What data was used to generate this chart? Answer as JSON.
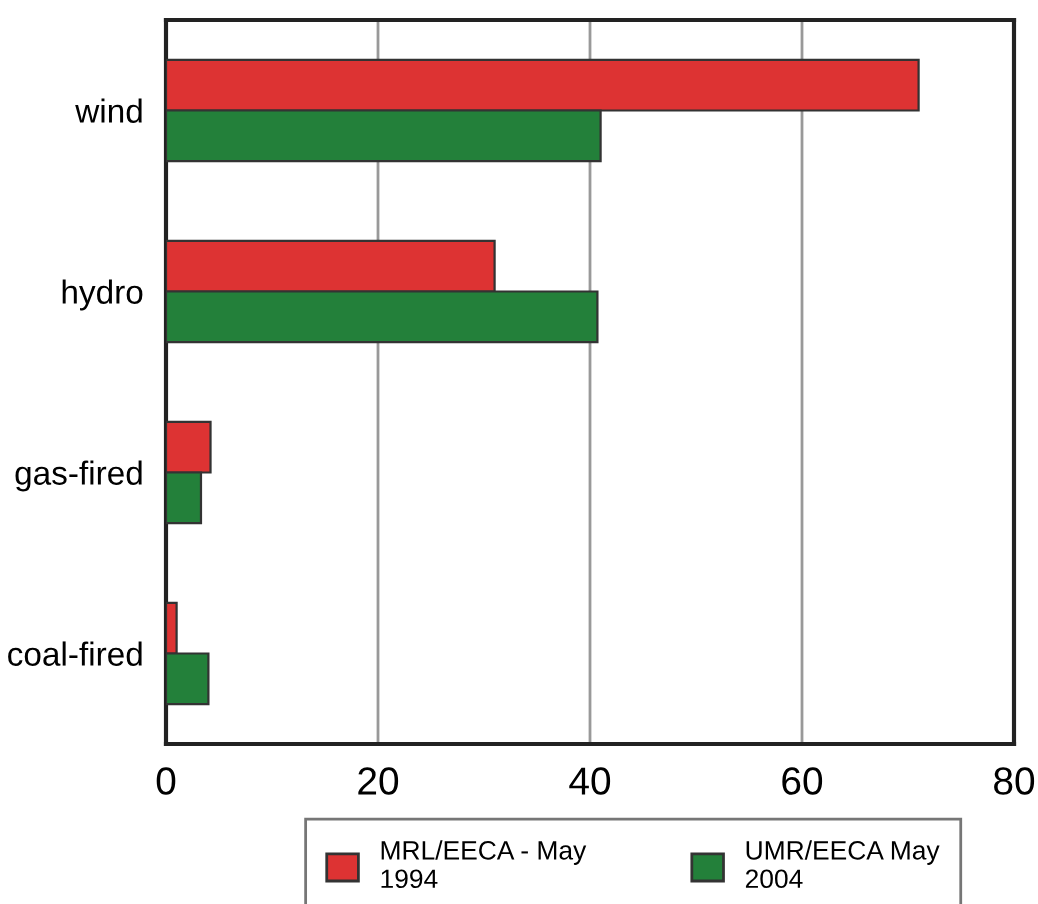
{
  "chart_data": {
    "type": "bar",
    "orientation": "horizontal",
    "categories": [
      "wind",
      "hydro",
      "gas-fired",
      "coal-fired"
    ],
    "series": [
      {
        "name": "MRL/EECA - May\n1994",
        "color": "#dd3333",
        "values": [
          71,
          31,
          4.2,
          1
        ]
      },
      {
        "name": "UMR/EECA May\n2004",
        "color": "#23803a",
        "values": [
          41,
          40.7,
          3.3,
          4
        ]
      }
    ],
    "xlim": [
      0,
      80
    ],
    "xticks": [
      0,
      20,
      40,
      60,
      80
    ],
    "grid": "x",
    "legend": "bottom"
  }
}
